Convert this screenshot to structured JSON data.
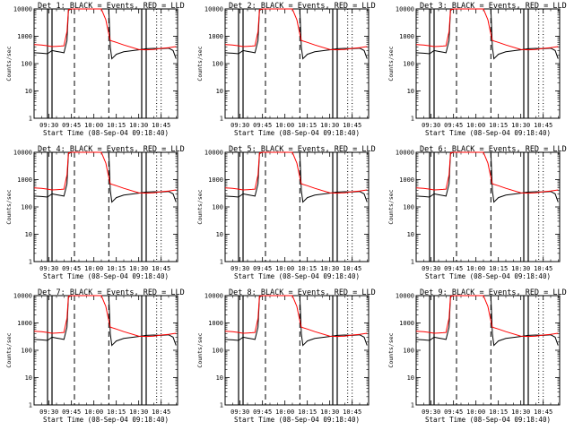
{
  "chart_data": {
    "type": "line",
    "layout": "3x3 grid of panels",
    "xlabel": "Start Time (08-Sep-04 09:18:40)",
    "ylabel": "Counts/sec",
    "y_scale": "log",
    "ylim": [
      1,
      10000
    ],
    "y_tick_labels": [
      "1",
      "10",
      "100",
      "1000",
      "10000"
    ],
    "xlim": [
      "09:20",
      "10:56"
    ],
    "x_tick_labels": [
      "09:30",
      "09:45",
      "10:00",
      "10:15",
      "10:30",
      "10:45"
    ],
    "x_tick_minutes": [
      570,
      585,
      600,
      615,
      630,
      645
    ],
    "series_colors": {
      "events": "#000000",
      "lld": "#ff0000"
    },
    "legend_text": "BLACK = Events, RED = LLD",
    "vertical_markers": {
      "solid": [
        "09:29",
        "09:32",
        "10:32",
        "10:35"
      ],
      "dashed": [
        "09:47",
        "10:10"
      ],
      "dotted": [
        "10:42",
        "10:45"
      ]
    },
    "panels": [
      {
        "title": "Det 1: BLACK = Events, RED = LLD"
      },
      {
        "title": "Det 2: BLACK = Events, RED = LLD"
      },
      {
        "title": "Det 3: BLACK = Events, RED = LLD"
      },
      {
        "title": "Det 4: BLACK = Events, RED = LLD"
      },
      {
        "title": "Det 5: BLACK = Events, RED = LLD"
      },
      {
        "title": "Det 6: BLACK = Events, RED = LLD"
      },
      {
        "title": "Det 7: BLACK = Events, RED = LLD"
      },
      {
        "title": "Det 8: BLACK = Events, RED = LLD"
      },
      {
        "title": "Det 9: BLACK = Events, RED = LLD"
      }
    ],
    "series": [
      {
        "name": "Events",
        "x": [
          "09:20",
          "09:25",
          "09:29",
          "09:32",
          "09:35",
          "09:38",
          "09:40",
          "09:42",
          "09:43",
          "09:45",
          "09:50",
          "10:00",
          "10:05",
          "10:10",
          "10:11",
          "10:12",
          "10:15",
          "10:20",
          "10:30",
          "10:35",
          "10:40",
          "10:45",
          "10:50",
          "10:53",
          "10:55"
        ],
        "values": [
          250,
          240,
          230,
          300,
          280,
          260,
          250,
          700,
          9000,
          10000,
          10000,
          10000,
          10000,
          10000,
          400,
          150,
          220,
          270,
          320,
          350,
          360,
          350,
          370,
          300,
          150
        ]
      },
      {
        "name": "LLD",
        "x": [
          "09:20",
          "09:25",
          "09:29",
          "09:32",
          "09:35",
          "09:38",
          "09:40",
          "09:42",
          "09:43",
          "09:45",
          "09:50",
          "10:00",
          "10:05",
          "10:08",
          "10:10",
          "10:11",
          "10:15",
          "10:20",
          "10:30",
          "10:35",
          "10:40",
          "10:45",
          "10:50",
          "10:55"
        ],
        "values": [
          500,
          480,
          450,
          420,
          430,
          440,
          450,
          1500,
          9500,
          10000,
          10000,
          10000,
          10000,
          4000,
          1200,
          700,
          600,
          480,
          330,
          320,
          330,
          360,
          380,
          420
        ]
      }
    ]
  }
}
